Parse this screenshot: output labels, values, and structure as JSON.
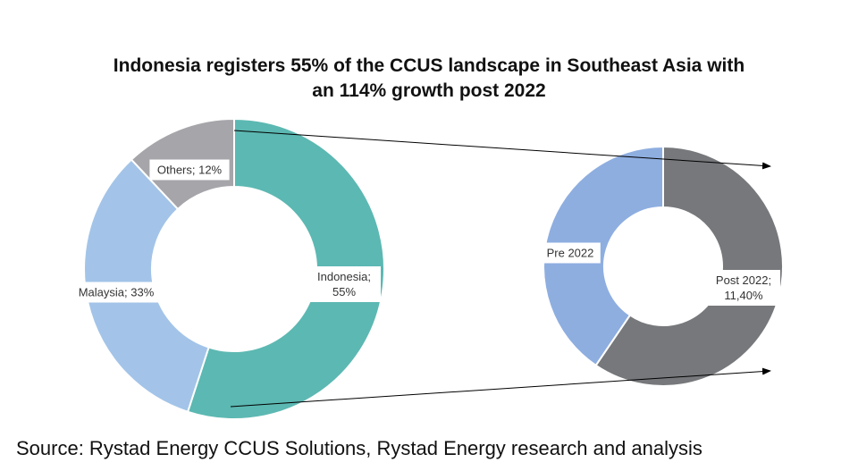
{
  "title": {
    "line1": "Indonesia registers 55% of the CCUS landscape in Southeast Asia with",
    "line2": "an 114% growth post 2022"
  },
  "source": "Source: Rystad Energy CCUS Solutions, Rystad Energy research and analysis",
  "chart_data": [
    {
      "type": "pie",
      "style": "donut",
      "slices": [
        {
          "label": [
            "Indonesia;",
            "55%"
          ],
          "name": "Indonesia",
          "value": 55,
          "color": "#5cb8b2"
        },
        {
          "label": [
            "Malaysia; 33%"
          ],
          "name": "Malaysia",
          "value": 33,
          "color": "#a3c4e8"
        },
        {
          "label": [
            "Others; 12%"
          ],
          "name": "Others",
          "value": 12,
          "color": "#a5a5aa"
        }
      ]
    },
    {
      "type": "pie",
      "style": "donut",
      "breakdown_of": "Indonesia",
      "slices": [
        {
          "label": [
            "Post 2022;",
            "11,40%"
          ],
          "name": "Post 2022",
          "value": 59.5,
          "color": "#76787b"
        },
        {
          "label": [
            "Pre 2022"
          ],
          "name": "Pre 2022",
          "value": 40.5,
          "color": "#8eaee0"
        }
      ]
    }
  ]
}
